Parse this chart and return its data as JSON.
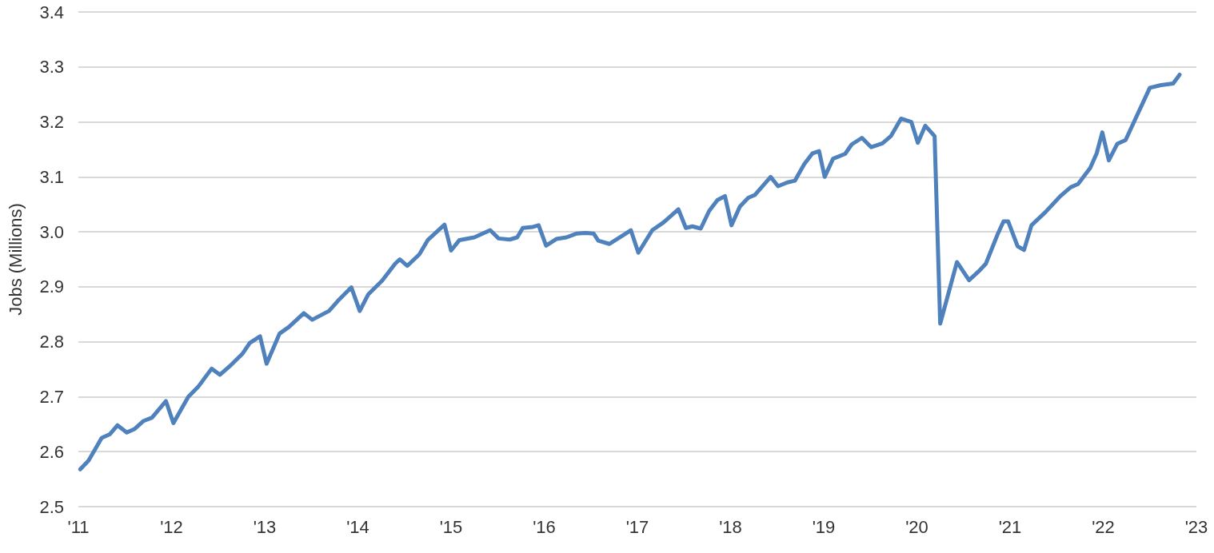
{
  "chart_data": {
    "type": "line",
    "ylabel": "Jobs (Millions)",
    "xlim": [
      2011,
      2023
    ],
    "xticks": [
      {
        "value": 2011,
        "label": "'11"
      },
      {
        "value": 2012,
        "label": "'12"
      },
      {
        "value": 2013,
        "label": "'13"
      },
      {
        "value": 2014,
        "label": "'14"
      },
      {
        "value": 2015,
        "label": "'15"
      },
      {
        "value": 2016,
        "label": "'16"
      },
      {
        "value": 2017,
        "label": "'17"
      },
      {
        "value": 2018,
        "label": "'18"
      },
      {
        "value": 2019,
        "label": "'19"
      },
      {
        "value": 2020,
        "label": "'20"
      },
      {
        "value": 2021,
        "label": "'21"
      },
      {
        "value": 2022,
        "label": "'22"
      },
      {
        "value": 2023,
        "label": "'23"
      }
    ],
    "ylim": [
      2.5,
      3.4
    ],
    "yticks": [
      {
        "value": 2.5,
        "label": "2.5"
      },
      {
        "value": 2.6,
        "label": "2.6"
      },
      {
        "value": 2.7,
        "label": "2.7"
      },
      {
        "value": 2.8,
        "label": "2.8"
      },
      {
        "value": 2.9,
        "label": "2.9"
      },
      {
        "value": 3.0,
        "label": "3.0"
      },
      {
        "value": 3.1,
        "label": "3.1"
      },
      {
        "value": 3.2,
        "label": "3.2"
      },
      {
        "value": 3.3,
        "label": "3.3"
      },
      {
        "value": 3.4,
        "label": "3.4"
      }
    ],
    "grid": "y",
    "marker": "none",
    "line_style": "solid",
    "series": [
      {
        "color": "#4f81bd",
        "x": [
          2011.02,
          2011.11,
          2011.25,
          2011.34,
          2011.42,
          2011.52,
          2011.6,
          2011.7,
          2011.79,
          2011.94,
          2012.02,
          2012.18,
          2012.29,
          2012.43,
          2012.52,
          2012.64,
          2012.76,
          2012.84,
          2012.95,
          2013.02,
          2013.16,
          2013.26,
          2013.42,
          2013.51,
          2013.69,
          2013.8,
          2013.93,
          2014.02,
          2014.11,
          2014.26,
          2014.4,
          2014.45,
          2014.53,
          2014.66,
          2014.75,
          2014.93,
          2015.0,
          2015.09,
          2015.25,
          2015.42,
          2015.51,
          2015.63,
          2015.71,
          2015.77,
          2015.88,
          2015.94,
          2016.02,
          2016.13,
          2016.24,
          2016.35,
          2016.44,
          2016.53,
          2016.58,
          2016.7,
          2016.84,
          2016.93,
          2017.01,
          2017.16,
          2017.28,
          2017.44,
          2017.52,
          2017.59,
          2017.68,
          2017.77,
          2017.86,
          2017.94,
          2018.01,
          2018.1,
          2018.19,
          2018.26,
          2018.43,
          2018.51,
          2018.61,
          2018.69,
          2018.79,
          2018.88,
          2018.95,
          2019.01,
          2019.1,
          2019.23,
          2019.3,
          2019.41,
          2019.51,
          2019.63,
          2019.72,
          2019.83,
          2019.94,
          2020.01,
          2020.09,
          2020.19,
          2020.25,
          2020.43,
          2020.56,
          2020.68,
          2020.74,
          2020.87,
          2020.93,
          2020.98,
          2021.08,
          2021.15,
          2021.23,
          2021.38,
          2021.54,
          2021.65,
          2021.73,
          2021.86,
          2021.93,
          2021.99,
          2022.06,
          2022.15,
          2022.24,
          2022.5,
          2022.62,
          2022.75,
          2022.82
        ],
        "values": [
          2.568,
          2.584,
          2.625,
          2.632,
          2.648,
          2.635,
          2.641,
          2.656,
          2.662,
          2.692,
          2.652,
          2.7,
          2.719,
          2.751,
          2.74,
          2.758,
          2.778,
          2.798,
          2.81,
          2.76,
          2.815,
          2.827,
          2.852,
          2.84,
          2.856,
          2.877,
          2.899,
          2.856,
          2.886,
          2.911,
          2.942,
          2.95,
          2.938,
          2.959,
          2.985,
          3.013,
          2.966,
          2.985,
          2.99,
          3.003,
          2.988,
          2.986,
          2.99,
          3.007,
          3.009,
          3.012,
          2.975,
          2.987,
          2.99,
          2.997,
          2.998,
          2.997,
          2.984,
          2.978,
          2.993,
          3.003,
          2.962,
          3.003,
          3.017,
          3.041,
          3.007,
          3.01,
          3.006,
          3.038,
          3.058,
          3.065,
          3.012,
          3.046,
          3.062,
          3.067,
          3.1,
          3.083,
          3.09,
          3.093,
          3.123,
          3.143,
          3.147,
          3.1,
          3.133,
          3.142,
          3.159,
          3.171,
          3.154,
          3.161,
          3.174,
          3.206,
          3.2,
          3.162,
          3.193,
          3.174,
          2.833,
          2.945,
          2.912,
          2.931,
          2.942,
          2.997,
          3.019,
          3.019,
          2.974,
          2.967,
          3.012,
          3.036,
          3.065,
          3.081,
          3.087,
          3.116,
          3.143,
          3.181,
          3.13,
          3.16,
          3.167,
          3.262,
          3.267,
          3.27,
          3.286
        ]
      }
    ]
  }
}
